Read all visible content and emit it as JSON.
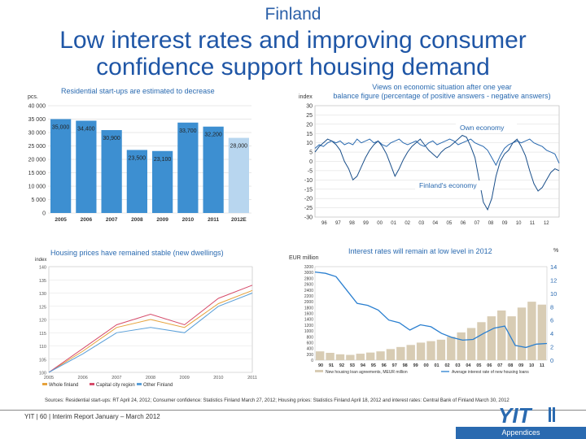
{
  "country_label": "Finland",
  "title_line1": "Low interest rates and improving consumer",
  "title_line2": "confidence support housing demand",
  "panel_tl": {
    "caption": "Residential start-ups are estimated to decrease",
    "unit": "pcs."
  },
  "panel_tr": {
    "caption_line1": "Views on economic situation after one year",
    "caption_line2": "balance figure (percentage of positive answers - negative answers)",
    "unit": "index",
    "label_own": "Own economy",
    "label_finland": "Finland's economy"
  },
  "panel_bl": {
    "caption": "Housing prices have remained stable (new dwellings)",
    "unit": "index",
    "legend": [
      "Whole finland",
      "Capital city region",
      "Other Finland"
    ]
  },
  "panel_br": {
    "caption": "Interest rates will remain at low level in 2012",
    "unit_left": "EUR million",
    "unit_right": "%",
    "legend": [
      "New housing loan agreements, MEUR million",
      "Average interest rate of new housing loans"
    ]
  },
  "sources": "Sources: Residential start-ups: RT April 24, 2012; Consumer confidence: Statistics Finland March 27, 2012; Housing prices: Statistics Finland April 18, 2012 and interest rates: Central Bank of Finland March 30, 2012",
  "footer": "YIT  |  60  |  Interim Report January – March 2012",
  "appendices": "Appendices",
  "logo_text": "YIT",
  "colors": {
    "accent": "#2a6ab0",
    "bar": "#3d8fd1",
    "bar_forecast": "#b8d6ef"
  },
  "chart_data": [
    {
      "type": "bar",
      "categories": [
        "2005",
        "2006",
        "2007",
        "2008",
        "2009",
        "2010",
        "2011",
        "2012E"
      ],
      "values": [
        35000,
        34400,
        30900,
        23500,
        23100,
        33700,
        32200,
        28000
      ],
      "value_labels": [
        "35,000",
        "34,400",
        "30,900",
        "23,500",
        "23,100",
        "33,700",
        "32,200",
        "28,000"
      ],
      "ylabel": "pcs.",
      "ylim": [
        0,
        40000
      ],
      "yticks": [
        "0",
        "5 000",
        "10 000",
        "15 000",
        "20 000",
        "25 000",
        "30 000",
        "35 000",
        "40 000"
      ]
    },
    {
      "type": "line",
      "ylabel": "index",
      "ylim": [
        -30,
        30
      ],
      "yticks": [
        "-30",
        "-25",
        "-20",
        "-15",
        "-10",
        "-5",
        "0",
        "5",
        "10",
        "15",
        "20",
        "25",
        "30"
      ],
      "xticks": [
        "96",
        "97",
        "98",
        "99",
        "00",
        "01",
        "02",
        "03",
        "04",
        "05",
        "06",
        "07",
        "08",
        "09",
        "10",
        "11",
        "12"
      ],
      "series": [
        {
          "name": "Own economy",
          "values": [
            7,
            9,
            8,
            10,
            11,
            10,
            11,
            9,
            10,
            9,
            12,
            10,
            11,
            12,
            10,
            11,
            9,
            8,
            10,
            11,
            12,
            10,
            9,
            10,
            11,
            9,
            8,
            10,
            11,
            9,
            10,
            11,
            12,
            11,
            9,
            10,
            11,
            12,
            10,
            9,
            8,
            6,
            2,
            -2,
            3,
            7,
            9,
            10,
            11,
            10,
            11,
            12,
            10,
            9,
            8,
            6,
            5,
            4,
            -1
          ]
        },
        {
          "name": "Finland's economy",
          "values": [
            5,
            8,
            10,
            12,
            11,
            9,
            6,
            0,
            -4,
            -10,
            -8,
            -3,
            2,
            6,
            9,
            11,
            8,
            4,
            -2,
            -8,
            -4,
            1,
            5,
            8,
            10,
            12,
            9,
            6,
            4,
            2,
            5,
            7,
            8,
            10,
            12,
            14,
            13,
            8,
            2,
            -10,
            -22,
            -26,
            -20,
            -8,
            0,
            4,
            6,
            10,
            12,
            8,
            3,
            -5,
            -12,
            -16,
            -14,
            -10,
            -6,
            -4,
            -5
          ]
        }
      ]
    },
    {
      "type": "line",
      "ylabel": "index",
      "ylim": [
        100,
        140
      ],
      "yticks": [
        "100",
        "105",
        "110",
        "115",
        "120",
        "125",
        "130",
        "135",
        "140"
      ],
      "categories": [
        "2005",
        "2006",
        "2007",
        "2008",
        "2009",
        "2010",
        "2011"
      ],
      "series": [
        {
          "name": "Whole finland",
          "values": [
            100,
            108,
            117,
            120,
            117,
            126,
            131
          ]
        },
        {
          "name": "Capital city region",
          "values": [
            100,
            109,
            118,
            122,
            118,
            128,
            133
          ]
        },
        {
          "name": "Other Finland",
          "values": [
            100,
            107,
            115,
            117,
            115,
            125,
            130
          ]
        }
      ]
    },
    {
      "type": "bar",
      "ylabel_left": "EUR million",
      "ylabel_right": "%",
      "ylim": [
        0,
        3200
      ],
      "ylim_right": [
        0,
        14
      ],
      "yticks": [
        "0",
        "200",
        "400",
        "600",
        "800",
        "1000",
        "1200",
        "1400",
        "1600",
        "1800",
        "2000",
        "2200",
        "2400",
        "2600",
        "2800",
        "3000",
        "3200"
      ],
      "yticks_right": [
        "0",
        "2",
        "4",
        "6",
        "8",
        "10",
        "12",
        "14"
      ],
      "xticks": [
        "90",
        "91",
        "92",
        "93",
        "94",
        "95",
        "96",
        "97",
        "98",
        "99",
        "00",
        "01",
        "02",
        "03",
        "04",
        "05",
        "06",
        "07",
        "08",
        "09",
        "10",
        "11"
      ],
      "series": [
        {
          "name": "New housing loan agreements, MEUR million",
          "values": [
            300,
            250,
            200,
            180,
            220,
            260,
            300,
            380,
            450,
            520,
            600,
            650,
            700,
            800,
            950,
            1100,
            1300,
            1500,
            1700,
            1500,
            1800,
            2000,
            1900
          ]
        },
        {
          "name": "Average interest rate of new housing loans",
          "values": [
            13.2,
            13.0,
            12.5,
            10.5,
            8.5,
            8.2,
            7.5,
            6.0,
            5.6,
            4.5,
            5.3,
            5.0,
            4.0,
            3.4,
            3.0,
            3.1,
            4.0,
            4.8,
            5.1,
            2.2,
            1.9,
            2.4,
            2.5
          ]
        }
      ]
    }
  ]
}
